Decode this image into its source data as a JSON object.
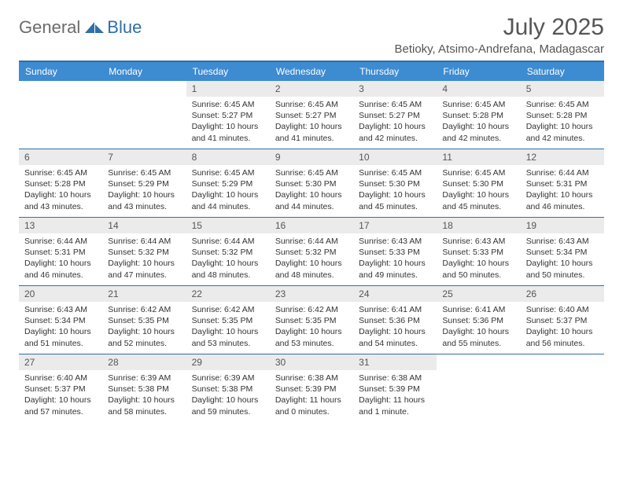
{
  "logo": {
    "general": "General",
    "blue": "Blue"
  },
  "title": "July 2025",
  "location": "Betioky, Atsimo-Andrefana, Madagascar",
  "weekdays": [
    "Sunday",
    "Monday",
    "Tuesday",
    "Wednesday",
    "Thursday",
    "Friday",
    "Saturday"
  ],
  "colors": {
    "header_bg": "#3d8bd0",
    "border": "#2f6fa8",
    "daynum_bg": "#ebebeb",
    "text_muted": "#555555",
    "text_body": "#333333",
    "logo_gray": "#6b6b6b",
    "logo_blue": "#2f6fa8"
  },
  "layout": {
    "cols": 7,
    "rows": 5,
    "first_day_col": 2
  },
  "days": [
    {
      "n": "1",
      "sunrise": "Sunrise: 6:45 AM",
      "sunset": "Sunset: 5:27 PM",
      "daylight": "Daylight: 10 hours and 41 minutes."
    },
    {
      "n": "2",
      "sunrise": "Sunrise: 6:45 AM",
      "sunset": "Sunset: 5:27 PM",
      "daylight": "Daylight: 10 hours and 41 minutes."
    },
    {
      "n": "3",
      "sunrise": "Sunrise: 6:45 AM",
      "sunset": "Sunset: 5:27 PM",
      "daylight": "Daylight: 10 hours and 42 minutes."
    },
    {
      "n": "4",
      "sunrise": "Sunrise: 6:45 AM",
      "sunset": "Sunset: 5:28 PM",
      "daylight": "Daylight: 10 hours and 42 minutes."
    },
    {
      "n": "5",
      "sunrise": "Sunrise: 6:45 AM",
      "sunset": "Sunset: 5:28 PM",
      "daylight": "Daylight: 10 hours and 42 minutes."
    },
    {
      "n": "6",
      "sunrise": "Sunrise: 6:45 AM",
      "sunset": "Sunset: 5:28 PM",
      "daylight": "Daylight: 10 hours and 43 minutes."
    },
    {
      "n": "7",
      "sunrise": "Sunrise: 6:45 AM",
      "sunset": "Sunset: 5:29 PM",
      "daylight": "Daylight: 10 hours and 43 minutes."
    },
    {
      "n": "8",
      "sunrise": "Sunrise: 6:45 AM",
      "sunset": "Sunset: 5:29 PM",
      "daylight": "Daylight: 10 hours and 44 minutes."
    },
    {
      "n": "9",
      "sunrise": "Sunrise: 6:45 AM",
      "sunset": "Sunset: 5:30 PM",
      "daylight": "Daylight: 10 hours and 44 minutes."
    },
    {
      "n": "10",
      "sunrise": "Sunrise: 6:45 AM",
      "sunset": "Sunset: 5:30 PM",
      "daylight": "Daylight: 10 hours and 45 minutes."
    },
    {
      "n": "11",
      "sunrise": "Sunrise: 6:45 AM",
      "sunset": "Sunset: 5:30 PM",
      "daylight": "Daylight: 10 hours and 45 minutes."
    },
    {
      "n": "12",
      "sunrise": "Sunrise: 6:44 AM",
      "sunset": "Sunset: 5:31 PM",
      "daylight": "Daylight: 10 hours and 46 minutes."
    },
    {
      "n": "13",
      "sunrise": "Sunrise: 6:44 AM",
      "sunset": "Sunset: 5:31 PM",
      "daylight": "Daylight: 10 hours and 46 minutes."
    },
    {
      "n": "14",
      "sunrise": "Sunrise: 6:44 AM",
      "sunset": "Sunset: 5:32 PM",
      "daylight": "Daylight: 10 hours and 47 minutes."
    },
    {
      "n": "15",
      "sunrise": "Sunrise: 6:44 AM",
      "sunset": "Sunset: 5:32 PM",
      "daylight": "Daylight: 10 hours and 48 minutes."
    },
    {
      "n": "16",
      "sunrise": "Sunrise: 6:44 AM",
      "sunset": "Sunset: 5:32 PM",
      "daylight": "Daylight: 10 hours and 48 minutes."
    },
    {
      "n": "17",
      "sunrise": "Sunrise: 6:43 AM",
      "sunset": "Sunset: 5:33 PM",
      "daylight": "Daylight: 10 hours and 49 minutes."
    },
    {
      "n": "18",
      "sunrise": "Sunrise: 6:43 AM",
      "sunset": "Sunset: 5:33 PM",
      "daylight": "Daylight: 10 hours and 50 minutes."
    },
    {
      "n": "19",
      "sunrise": "Sunrise: 6:43 AM",
      "sunset": "Sunset: 5:34 PM",
      "daylight": "Daylight: 10 hours and 50 minutes."
    },
    {
      "n": "20",
      "sunrise": "Sunrise: 6:43 AM",
      "sunset": "Sunset: 5:34 PM",
      "daylight": "Daylight: 10 hours and 51 minutes."
    },
    {
      "n": "21",
      "sunrise": "Sunrise: 6:42 AM",
      "sunset": "Sunset: 5:35 PM",
      "daylight": "Daylight: 10 hours and 52 minutes."
    },
    {
      "n": "22",
      "sunrise": "Sunrise: 6:42 AM",
      "sunset": "Sunset: 5:35 PM",
      "daylight": "Daylight: 10 hours and 53 minutes."
    },
    {
      "n": "23",
      "sunrise": "Sunrise: 6:42 AM",
      "sunset": "Sunset: 5:35 PM",
      "daylight": "Daylight: 10 hours and 53 minutes."
    },
    {
      "n": "24",
      "sunrise": "Sunrise: 6:41 AM",
      "sunset": "Sunset: 5:36 PM",
      "daylight": "Daylight: 10 hours and 54 minutes."
    },
    {
      "n": "25",
      "sunrise": "Sunrise: 6:41 AM",
      "sunset": "Sunset: 5:36 PM",
      "daylight": "Daylight: 10 hours and 55 minutes."
    },
    {
      "n": "26",
      "sunrise": "Sunrise: 6:40 AM",
      "sunset": "Sunset: 5:37 PM",
      "daylight": "Daylight: 10 hours and 56 minutes."
    },
    {
      "n": "27",
      "sunrise": "Sunrise: 6:40 AM",
      "sunset": "Sunset: 5:37 PM",
      "daylight": "Daylight: 10 hours and 57 minutes."
    },
    {
      "n": "28",
      "sunrise": "Sunrise: 6:39 AM",
      "sunset": "Sunset: 5:38 PM",
      "daylight": "Daylight: 10 hours and 58 minutes."
    },
    {
      "n": "29",
      "sunrise": "Sunrise: 6:39 AM",
      "sunset": "Sunset: 5:38 PM",
      "daylight": "Daylight: 10 hours and 59 minutes."
    },
    {
      "n": "30",
      "sunrise": "Sunrise: 6:38 AM",
      "sunset": "Sunset: 5:39 PM",
      "daylight": "Daylight: 11 hours and 0 minutes."
    },
    {
      "n": "31",
      "sunrise": "Sunrise: 6:38 AM",
      "sunset": "Sunset: 5:39 PM",
      "daylight": "Daylight: 11 hours and 1 minute."
    }
  ]
}
